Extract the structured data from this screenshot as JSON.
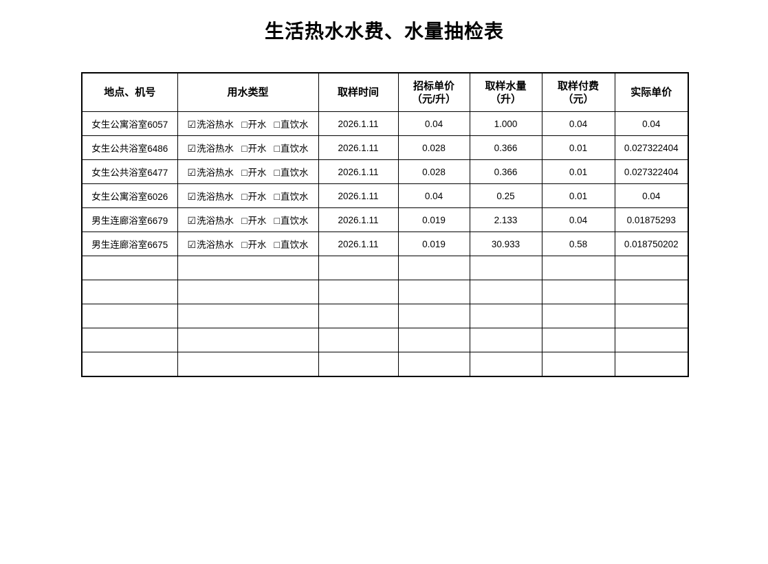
{
  "page": {
    "title": "生活热水水费、水量抽检表"
  },
  "table": {
    "columns": [
      {
        "key": "location",
        "label": "地点、机号"
      },
      {
        "key": "water_type",
        "label": "用水类型"
      },
      {
        "key": "sample_time",
        "label": "取样时间"
      },
      {
        "key": "bid_price",
        "label": "招标单价\n（元/升）"
      },
      {
        "key": "sample_volume",
        "label": "取样水量\n（升）"
      },
      {
        "key": "sample_fee",
        "label": "取样付费\n（元）"
      },
      {
        "key": "actual_price",
        "label": "实际单价"
      }
    ],
    "checked_icon": "☑",
    "unchecked_icon": "□",
    "rows": [
      {
        "location": "女生公寓浴室6057",
        "water_types": [
          {
            "label": "洗浴热水",
            "checked": true
          },
          {
            "label": "开水",
            "checked": false
          },
          {
            "label": "直饮水",
            "checked": false
          }
        ],
        "sample_time": "2026.1.11",
        "bid_price": "0.04",
        "sample_volume": "1.000",
        "sample_fee": "0.04",
        "actual_price": "0.04"
      },
      {
        "location": "女生公共浴室6486",
        "water_types": [
          {
            "label": "洗浴热水",
            "checked": true
          },
          {
            "label": "开水",
            "checked": false
          },
          {
            "label": "直饮水",
            "checked": false
          }
        ],
        "sample_time": "2026.1.11",
        "bid_price": "0.028",
        "sample_volume": "0.366",
        "sample_fee": "0.01",
        "actual_price": "0.027322404"
      },
      {
        "location": "女生公共浴室6477",
        "water_types": [
          {
            "label": "洗浴热水",
            "checked": true
          },
          {
            "label": "开水",
            "checked": false
          },
          {
            "label": "直饮水",
            "checked": false
          }
        ],
        "sample_time": "2026.1.11",
        "bid_price": "0.028",
        "sample_volume": "0.366",
        "sample_fee": "0.01",
        "actual_price": "0.027322404"
      },
      {
        "location": "女生公寓浴室6026",
        "water_types": [
          {
            "label": "洗浴热水",
            "checked": true
          },
          {
            "label": "开水",
            "checked": false
          },
          {
            "label": "直饮水",
            "checked": false
          }
        ],
        "sample_time": "2026.1.11",
        "bid_price": "0.04",
        "sample_volume": "0.25",
        "sample_fee": "0.01",
        "actual_price": "0.04"
      },
      {
        "location": "男生连廊浴室6679",
        "water_types": [
          {
            "label": "洗浴热水",
            "checked": true
          },
          {
            "label": "开水",
            "checked": false
          },
          {
            "label": "直饮水",
            "checked": false
          }
        ],
        "sample_time": "2026.1.11",
        "bid_price": "0.019",
        "sample_volume": "2.133",
        "sample_fee": "0.04",
        "actual_price": "0.01875293"
      },
      {
        "location": "男生连廊浴室6675",
        "water_types": [
          {
            "label": "洗浴热水",
            "checked": true
          },
          {
            "label": "开水",
            "checked": false
          },
          {
            "label": "直饮水",
            "checked": false
          }
        ],
        "sample_time": "2026.1.11",
        "bid_price": "0.019",
        "sample_volume": "30.933",
        "sample_fee": "0.58",
        "actual_price": "0.018750202"
      }
    ],
    "empty_row_count": 5
  }
}
